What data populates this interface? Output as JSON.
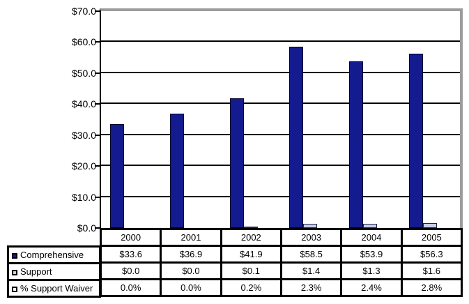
{
  "chart_data": {
    "type": "bar",
    "title": "",
    "xlabel": "",
    "ylabel": "",
    "categories": [
      "2000",
      "2001",
      "2002",
      "2003",
      "2004",
      "2005"
    ],
    "series": [
      {
        "name": "Comprehensive",
        "values": [
          33.6,
          36.9,
          41.9,
          58.5,
          53.9,
          56.3
        ],
        "unit": "$M",
        "color": "#131b8e",
        "border_color": "#000028",
        "plotted": true
      },
      {
        "name": "Support",
        "values": [
          0.0,
          0.0,
          0.1,
          1.4,
          1.3,
          1.6
        ],
        "unit": "$M",
        "color": "#c6cfe8",
        "border_color": "#20204a",
        "plotted": true
      },
      {
        "name": "% Support Waiver",
        "values": [
          0.0,
          0.0,
          0.2,
          2.3,
          2.4,
          2.8
        ],
        "unit": "%",
        "color": "#ffffff",
        "border_color": "#000000",
        "plotted": false
      }
    ],
    "ylim": [
      0,
      70
    ],
    "ytick_step": 10,
    "ytick_labels": [
      "$70.0",
      "$60.0",
      "$50.0",
      "$40.0",
      "$30.0",
      "$20.0",
      "$10.0",
      "$0.0"
    ],
    "grid": true,
    "legend_position": "left-of-table"
  },
  "table": {
    "header": [
      "2000",
      "2001",
      "2002",
      "2003",
      "2004",
      "2005"
    ],
    "rows": [
      {
        "label": "Comprehensive",
        "cells": [
          "$33.6",
          "$36.9",
          "$41.9",
          "$58.5",
          "$53.9",
          "$56.3"
        ]
      },
      {
        "label": "Support",
        "cells": [
          "$0.0",
          "$0.0",
          "$0.1",
          "$1.4",
          "$1.3",
          "$1.6"
        ]
      },
      {
        "label": "% Support Waiver",
        "cells": [
          "0.0%",
          "0.0%",
          "0.2%",
          "2.3%",
          "2.4%",
          "2.8%"
        ]
      }
    ]
  },
  "colors": {
    "comprehensive_bar": "#131b8e",
    "support_bar": "#c6cfe8",
    "waiver_swatch": "#ffffff",
    "gridline": "#000000",
    "plot_shadow_border": "#9c9c9c",
    "background": "#ffffff"
  }
}
